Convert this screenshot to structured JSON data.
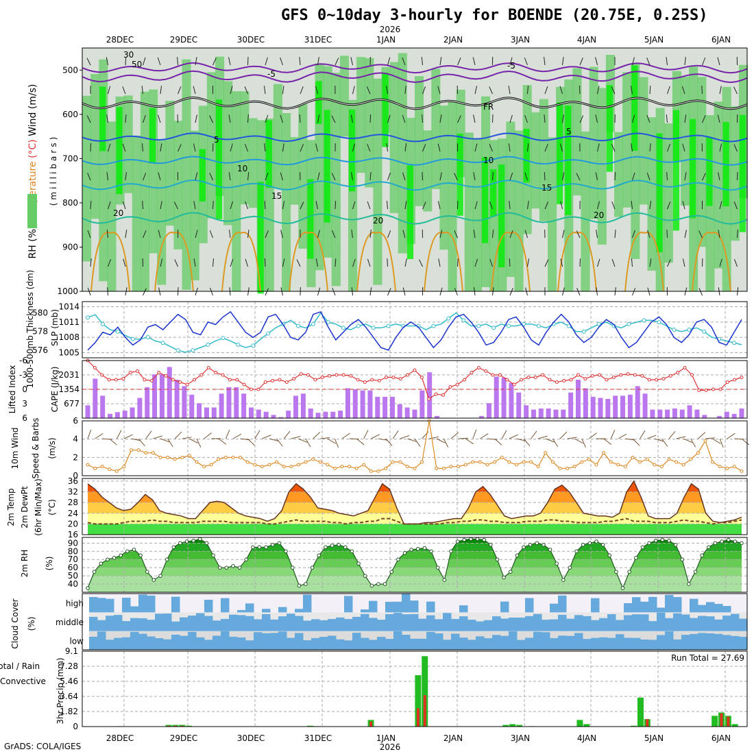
{
  "title": "GFS 0~10day 3-hourly for BOENDE (20.75E, 0.25S)",
  "credit": "GrADS: COLA/IGES",
  "colors": {
    "rh_light": "#d8e0d8",
    "rh_mid": "#66cc66",
    "rh_dark": "#00ee00",
    "slp": "#1a33cc",
    "thick": "#33bbcc",
    "li": "#dd3333",
    "cape": "#bb77ee",
    "wind10": "#dd8822",
    "temp": "#dd3300",
    "rh2m": "#009900",
    "cloud": "#66aadd",
    "precip_total": "#22bb22",
    "precip_conv": "#dd3322"
  },
  "chart_data": [
    {
      "type": "heatmap",
      "panel": "upper-air",
      "ylabel_parts": [
        "RH (%)",
        "Temperature",
        " (°C)",
        "Wind",
        " (m/s)"
      ],
      "ylabel_units": "(millibars)",
      "y_ticks": [
        500,
        600,
        700,
        800,
        900,
        1000
      ],
      "ylim": [
        1000,
        450
      ],
      "year_label": "2026",
      "x_ticks": [
        "28DEC",
        "29DEC",
        "30DEC",
        "31DEC",
        "1JAN",
        "2JAN",
        "3JAN",
        "4JAN",
        "5JAN",
        "6JAN"
      ],
      "isotherm_labels": [
        "-5",
        "-5",
        "5",
        "5",
        "10",
        "10",
        "15",
        "15",
        "20",
        "20",
        "20",
        "FR"
      ],
      "rh_labels": [
        "30",
        "50"
      ]
    },
    {
      "type": "line",
      "panel": "slp-thickness",
      "ylabel_left": "1000-500mb Thickness (dm)",
      "ylabel_right": "SLP (mb)",
      "left_ticks": [
        576,
        578,
        580
      ],
      "right_ticks": [
        1005,
        1008,
        1011,
        1014
      ],
      "series": [
        {
          "name": "SLP (mb)",
          "values": [
            1005.5,
            1007,
            1009,
            1008.5,
            1010,
            1008,
            1006.5,
            1007.5,
            1010,
            1010.5,
            1009.5,
            1011,
            1012.5,
            1011.5,
            1009,
            1008.5,
            1011,
            1010.5,
            1012,
            1013,
            1011,
            1009,
            1008,
            1009,
            1012,
            1012.5,
            1010.5,
            1008,
            1007.5,
            1009,
            1012.5,
            1013,
            1010,
            1007.5,
            1009,
            1010.5,
            1011.5,
            1010,
            1008,
            1006,
            1005.5,
            1008,
            1010,
            1011,
            1010,
            1008,
            1006,
            1007.5,
            1010,
            1012,
            1012.5,
            1011,
            1009,
            1006.5,
            1007,
            1009,
            1011.5,
            1012,
            1010,
            1007.5,
            1006.5,
            1009,
            1011,
            1012.5,
            1011,
            1008.5,
            1007,
            1008,
            1010,
            1011.5,
            1010.5,
            1008,
            1006,
            1007,
            1009,
            1011,
            1012,
            1010.5,
            1008,
            1007,
            1008.5,
            1011,
            1011.5,
            1010,
            1007,
            1006.5,
            1009,
            1011.5
          ]
        },
        {
          "name": "1000-500mb Thickness (dm)",
          "values": [
            579.5,
            579.8,
            578.8,
            578.2,
            578,
            577.6,
            577.2,
            577.2,
            577.4,
            577,
            576.8,
            576.4,
            576,
            575.8,
            576,
            576.3,
            576.6,
            577,
            577.3,
            577,
            576.6,
            576.3,
            576.5,
            577.2,
            577.8,
            578.4,
            578.8,
            579.2,
            578.6,
            578.4,
            578.8,
            580,
            579,
            578.8,
            578.4,
            578.2,
            578.6,
            578.8,
            578.4,
            578.4,
            578.6,
            578.8,
            578.6,
            578.6,
            578.6,
            578.2,
            578.6,
            578.8,
            579.4,
            580,
            579.2,
            578.6,
            578.6,
            578.8,
            578.4,
            578.8,
            578.6,
            578.6,
            578.8,
            578.8,
            578.6,
            578.4,
            578.8,
            579,
            578.6,
            578,
            578,
            578.4,
            578.8,
            579,
            578.6,
            578.4,
            578.8,
            579,
            579.2,
            579.2,
            579,
            578.6,
            578.2,
            578,
            578.2,
            578.4,
            578,
            577.4,
            577.2,
            577,
            576.8,
            576.6
          ]
        }
      ]
    },
    {
      "type": "bar",
      "panel": "cape-li",
      "ylabel_left": "Lifted Index",
      "ylabel_right": "CAPE (J/kg)",
      "left_ticks": [
        "-6",
        "-3",
        "0",
        "3",
        "6"
      ],
      "right_ticks": [
        "677",
        "1354",
        "2031"
      ],
      "series": [
        {
          "name": "CAPE (J/kg)",
          "values": [
            600,
            1850,
            1050,
            200,
            280,
            350,
            500,
            950,
            1450,
            2050,
            2050,
            2400,
            1800,
            1500,
            1100,
            700,
            500,
            500,
            1150,
            1450,
            1450,
            1150,
            500,
            400,
            300,
            150,
            50,
            350,
            1050,
            1150,
            450,
            250,
            300,
            300,
            350,
            1400,
            1350,
            1300,
            1300,
            1000,
            1000,
            1000,
            650,
            500,
            400,
            1300,
            2150,
            100,
            0,
            0,
            0,
            0,
            0,
            100,
            700,
            1950,
            1900,
            1650,
            1200,
            600,
            400,
            450,
            450,
            400,
            400,
            1200,
            1800,
            1400,
            1000,
            950,
            900,
            1050,
            1050,
            1100,
            1500,
            1150,
            400,
            400,
            400,
            450,
            400,
            600,
            400,
            150,
            0,
            100,
            300,
            200,
            450
          ]
        },
        {
          "name": "Lifted Index",
          "values": [
            -6,
            -4.5,
            -3,
            -2,
            -2,
            -2.2,
            -3.5,
            -3.8,
            -2,
            -1.8,
            -3.5,
            -2.8,
            -2,
            -1.5,
            -1,
            -2,
            -3,
            -4.5,
            -3.5,
            -3,
            -2,
            -2,
            -1,
            0,
            0,
            -1.5,
            -1.8,
            -2,
            -1.5,
            -2.2,
            -3.2,
            -3,
            -2,
            -2.5,
            -2.8,
            -3,
            -3,
            -2.8,
            -2,
            -1.5,
            -2,
            -1.8,
            -2.5,
            -2.5,
            -2.2,
            -3,
            -4,
            -2.5,
            2,
            1,
            1.2,
            -0.5,
            -1,
            -2,
            -3.5,
            -4.5,
            -3.8,
            -3,
            -3,
            -2,
            -1,
            -2,
            -2.5,
            -2.5,
            -3,
            -2,
            -1.5,
            -1.8,
            -2,
            -3,
            -2.2,
            -2.8,
            -3,
            -2,
            -2.5,
            -3,
            -3.2,
            -3,
            -2.8,
            -2,
            -2,
            -2.2,
            -2.8,
            -3.5,
            -4.5,
            -3,
            0.2,
            0.2,
            0,
            0,
            -1.5,
            -2,
            -2.5
          ]
        }
      ]
    },
    {
      "type": "line",
      "panel": "10m-wind",
      "ylabel": "10m Wind Speed (m/s) & Barbs",
      "ylim": [
        0,
        6
      ],
      "y_ticks": [
        0,
        2,
        4,
        6
      ],
      "series": [
        {
          "name": "10m Wind Speed",
          "values": [
            1.2,
            0.8,
            1,
            0.7,
            0.5,
            1,
            2.8,
            2.8,
            2.5,
            2.5,
            2,
            2,
            1.8,
            2,
            2.2,
            1.5,
            1,
            1.2,
            1.8,
            2,
            2,
            2,
            1.5,
            1.2,
            1,
            1.2,
            1.5,
            1,
            1,
            1.2,
            1.5,
            1.8,
            1.5,
            1.2,
            0.8,
            1,
            1,
            0.8,
            1.2,
            0.5,
            0.5,
            0.8,
            1.5,
            1.5,
            1,
            0.8,
            1.5,
            6,
            0.8,
            0.8,
            1,
            1,
            1.2,
            1.5,
            1.5,
            1.2,
            1.5,
            2,
            1.5,
            1.2,
            1.5,
            1.5,
            1,
            2.5,
            1.5,
            0.8,
            0.8,
            1,
            1.5,
            1.8,
            1.2,
            2.5,
            1.5,
            1.2,
            1,
            2,
            1.5,
            1.8,
            1.2,
            1,
            1.8,
            1.5,
            1.2,
            1.8,
            2.5,
            3.8,
            1.5,
            1,
            0.8,
            1,
            0.5
          ]
        }
      ]
    },
    {
      "type": "area",
      "panel": "2m-temp",
      "ylabel": "2m Temp 2m DewPt (6hr Min/Max) (°C)",
      "ylim": [
        16,
        37
      ],
      "y_ticks": [
        16,
        20,
        24,
        28,
        32,
        36
      ],
      "series": [
        {
          "name": "2m Temp",
          "values": [
            35,
            33,
            30,
            28,
            26,
            25,
            25.5,
            28,
            31,
            29,
            25,
            24,
            23.5,
            23,
            22,
            22,
            25,
            28,
            28.5,
            28,
            26,
            24,
            23,
            22.5,
            22,
            21,
            22,
            25,
            32,
            35,
            33,
            30,
            26,
            25.5,
            25,
            24,
            23.5,
            23,
            24,
            25,
            30,
            35,
            33,
            26,
            20,
            20,
            20,
            20.5,
            20.5,
            21,
            21.5,
            22,
            22,
            26,
            32,
            34,
            31,
            27,
            23,
            22,
            22.5,
            23,
            23,
            24,
            28,
            33,
            34.5,
            32,
            28,
            24,
            23.5,
            23,
            23,
            22.5,
            24,
            32,
            36,
            30,
            23,
            22,
            22,
            22,
            24,
            30,
            35,
            33,
            24,
            21,
            20.5,
            21,
            21.5,
            22.5
          ]
        },
        {
          "name": "2m DewPt",
          "values": [
            20.5,
            20,
            20,
            20,
            20,
            20.5,
            21,
            21,
            21,
            21.5,
            21,
            21,
            20.5,
            20.5,
            20.5,
            20.5,
            21,
            21,
            21,
            21,
            20.5,
            20.5,
            20.5,
            20.5,
            20.5,
            20,
            20,
            20.5,
            21,
            21.5,
            21,
            21,
            21,
            21,
            20.5,
            20.5,
            20,
            20.5,
            20.5,
            21,
            21,
            22,
            22,
            21,
            20,
            20,
            20,
            20,
            20,
            20,
            20.5,
            20.5,
            21,
            21,
            21.5,
            21.5,
            21,
            21,
            20.5,
            20.5,
            20.5,
            21,
            21,
            21,
            21.5,
            21.5,
            21,
            21,
            20.5,
            20.5,
            20.5,
            20.5,
            21,
            21,
            21.5,
            22,
            21,
            21,
            21,
            20.5,
            20.5,
            20.5,
            21,
            21.5,
            21,
            21,
            20.5,
            20,
            20.5,
            20.5,
            21,
            21.5
          ]
        }
      ]
    },
    {
      "type": "area",
      "panel": "2m-rh",
      "ylabel": "2m RH (%)",
      "ylim": [
        30,
        97
      ],
      "y_ticks": [
        40,
        50,
        60,
        70,
        80,
        90
      ],
      "series": [
        {
          "name": "2m RH",
          "values": [
            35,
            55,
            65,
            70,
            72,
            75,
            80,
            82,
            75,
            55,
            45,
            50,
            70,
            85,
            90,
            92,
            93,
            95,
            90,
            75,
            60,
            60,
            62,
            60,
            70,
            85,
            85,
            85,
            88,
            90,
            80,
            60,
            38,
            40,
            60,
            75,
            85,
            87,
            88,
            85,
            80,
            65,
            50,
            38,
            40,
            40,
            55,
            70,
            78,
            82,
            83,
            84,
            80,
            60,
            45,
            80,
            92,
            94,
            95,
            95,
            94,
            88,
            70,
            48,
            55,
            75,
            85,
            88,
            90,
            88,
            82,
            65,
            45,
            60,
            80,
            88,
            90,
            92,
            88,
            75,
            55,
            35,
            55,
            72,
            85,
            90,
            93,
            94,
            93,
            88,
            70,
            40,
            55,
            75,
            85,
            90,
            92,
            94,
            92,
            90
          ]
        }
      ]
    },
    {
      "type": "heatmap",
      "panel": "cloud-cover",
      "ylabel": "Cloud Cover (%)",
      "rows": [
        "high",
        "middle",
        "low"
      ]
    },
    {
      "type": "bar",
      "panel": "precip",
      "ylabel": "3hr Precip (mm)",
      "ylabel_side": [
        "Total / Rain",
        "Convective"
      ],
      "ylim": [
        0,
        9.1
      ],
      "y_ticks": [
        "0",
        "1.82",
        "3.64",
        "5.46",
        "7.28",
        "9.1"
      ],
      "run_total": "Run Total = 27.69",
      "series": [
        {
          "name": "Total",
          "values": [
            0,
            0,
            0,
            0,
            0,
            0.05,
            0,
            0,
            0,
            0,
            0,
            0,
            0.2,
            0.2,
            0.2,
            0.1,
            0,
            0,
            0,
            0,
            0,
            0,
            0,
            0,
            0,
            0,
            0,
            0,
            0,
            0,
            0,
            0,
            0,
            0.1,
            0.05,
            0,
            0,
            0,
            0,
            0,
            0,
            0,
            0.8,
            0,
            0,
            0,
            0,
            0,
            0,
            6.2,
            8.5,
            0,
            0,
            0,
            0,
            0,
            0,
            0,
            0,
            0,
            0,
            0,
            0.2,
            0.3,
            0.2,
            0,
            0.05,
            0,
            0,
            0,
            0,
            0,
            0,
            0.8,
            0.3,
            0,
            0,
            0,
            0,
            0,
            0,
            0.1,
            3.5,
            0.9,
            0,
            0,
            0,
            0,
            0,
            0,
            0,
            0,
            0,
            1.3,
            1.7,
            1.3,
            0.3,
            0
          ]
        },
        {
          "name": "Convective",
          "values": [
            0,
            0,
            0,
            0,
            0,
            0,
            0,
            0,
            0,
            0,
            0,
            0,
            0.1,
            0.1,
            0.1,
            0,
            0,
            0,
            0,
            0,
            0,
            0,
            0,
            0,
            0,
            0,
            0,
            0,
            0,
            0,
            0,
            0,
            0,
            0,
            0,
            0,
            0,
            0,
            0,
            0,
            0,
            0,
            0.6,
            0,
            0,
            0,
            0,
            0,
            0,
            2.2,
            3.8,
            0,
            0,
            0,
            0,
            0,
            0,
            0,
            0,
            0,
            0,
            0,
            0,
            0,
            0,
            0,
            0,
            0,
            0,
            0,
            0,
            0,
            0,
            0,
            0,
            0,
            0,
            0,
            0,
            0,
            0,
            0,
            0,
            0.9,
            0,
            0,
            0,
            0,
            0,
            0,
            0,
            0,
            0,
            0,
            1.6,
            1.2,
            0,
            0
          ]
        }
      ]
    }
  ]
}
